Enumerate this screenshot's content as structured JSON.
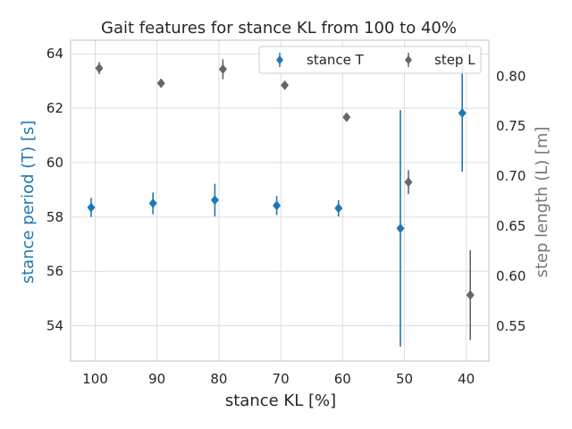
{
  "chart_data": {
    "type": "scatter",
    "title": "Gait features for stance KL from 100 to 40%",
    "xlabel": "stance KL [%]",
    "ylabel_left": "stance period (T) [s]",
    "ylabel_right": "step length (L) [m]",
    "x_categories": [
      100,
      90,
      80,
      70,
      60,
      50,
      40
    ],
    "x_tick_labels": [
      "100",
      "90",
      "80",
      "70",
      "60",
      "50",
      "40"
    ],
    "ylim_left": [
      52.7,
      64.5
    ],
    "yticks_left": [
      54,
      56,
      58,
      60,
      62,
      64
    ],
    "ylim_right": [
      0.515,
      0.836
    ],
    "yticks_right": [
      0.55,
      0.6,
      0.65,
      0.7,
      0.75,
      0.8
    ],
    "yticks_right_labels": [
      "0.55",
      "0.60",
      "0.65",
      "0.70",
      "0.75",
      "0.80"
    ],
    "legend_position": "top-right",
    "grid": true,
    "series": [
      {
        "name": "stance T",
        "axis": "left",
        "marker": "diamond",
        "color": "#1f77b4",
        "x_offset": -0.5,
        "values": [
          58.35,
          58.5,
          58.62,
          58.42,
          58.32,
          57.58,
          61.82
        ],
        "errors": [
          0.35,
          0.4,
          0.6,
          0.35,
          0.3,
          4.35,
          2.15
        ]
      },
      {
        "name": "step L",
        "axis": "right",
        "marker": "diamond",
        "color": "#666666",
        "x_offset": 0.5,
        "values": [
          0.808,
          0.793,
          0.807,
          0.791,
          0.759,
          0.694,
          0.581
        ],
        "errors": [
          0.006,
          0.004,
          0.01,
          0.004,
          0.003,
          0.012,
          0.045
        ]
      }
    ]
  }
}
